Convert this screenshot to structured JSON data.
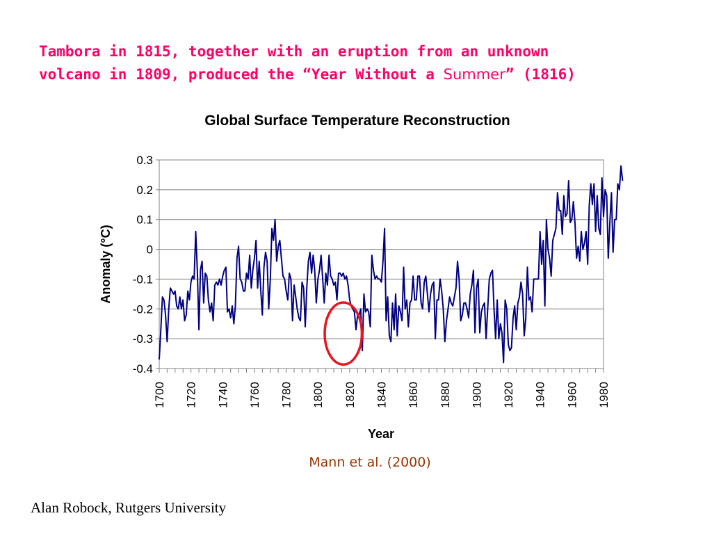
{
  "slide": {
    "heading_line1": "Tambora in 1815, together with an eruption from an unknown",
    "heading_line2_a": "volcano in 1809, produced the “Year Without a",
    "heading_line2_b": "Summer",
    "heading_line2_c": "” (1816)",
    "citation": "Mann et al. (2000)",
    "footer": "Alan Robock, Rutgers University",
    "colors": {
      "heading": "#ff0066",
      "citation": "#993300",
      "highlight": "#e8141e"
    }
  },
  "chart_data": {
    "type": "line",
    "title": "Global Surface Temperature Reconstruction",
    "xlabel": "Year",
    "ylabel": "Anomaly (°C)",
    "xlim": [
      1700,
      1980
    ],
    "ylim": [
      -0.4,
      0.3
    ],
    "x_ticks": [
      "1700",
      "1720",
      "1740",
      "1760",
      "1780",
      "1800",
      "1820",
      "1840",
      "1860",
      "1880",
      "1900",
      "1920",
      "1940",
      "1960",
      "1980"
    ],
    "y_ticks": [
      "0.3",
      "0.2",
      "0.1",
      "0",
      "-0.1",
      "-0.2",
      "-0.3",
      "-0.4"
    ],
    "grid": "horizontal",
    "legend": "none",
    "line_color": "#000080",
    "highlight": {
      "shape": "ellipse",
      "x_range": [
        1810,
        1822
      ],
      "y_range": [
        -0.375,
        -0.19
      ]
    },
    "series": [
      {
        "x_start": 1700,
        "x_step": 1,
        "values": [
          -0.37,
          -0.27,
          -0.16,
          -0.17,
          -0.22,
          -0.31,
          -0.2,
          -0.13,
          -0.14,
          -0.15,
          -0.14,
          -0.19,
          -0.2,
          -0.16,
          -0.2,
          -0.17,
          -0.24,
          -0.22,
          -0.14,
          -0.17,
          -0.11,
          -0.09,
          -0.1,
          0.06,
          -0.07,
          -0.27,
          -0.07,
          -0.04,
          -0.18,
          -0.08,
          -0.09,
          -0.17,
          -0.21,
          -0.18,
          -0.24,
          -0.12,
          -0.11,
          -0.12,
          -0.1,
          -0.12,
          -0.09,
          -0.07,
          -0.06,
          -0.21,
          -0.2,
          -0.23,
          -0.19,
          -0.25,
          -0.19,
          -0.03,
          0.01,
          -0.1,
          -0.11,
          -0.14,
          -0.14,
          -0.08,
          -0.1,
          -0.02,
          -0.13,
          -0.07,
          -0.03,
          0.03,
          -0.13,
          -0.04,
          -0.14,
          -0.22,
          -0.06,
          -0.01,
          -0.04,
          -0.2,
          -0.1,
          0.07,
          0.03,
          0.1,
          -0.04,
          0.01,
          0.03,
          -0.03,
          -0.09,
          -0.1,
          -0.14,
          -0.17,
          -0.08,
          -0.1,
          -0.24,
          -0.12,
          -0.16,
          -0.2,
          -0.23,
          -0.24,
          -0.11,
          -0.13,
          -0.26,
          -0.13,
          -0.04,
          -0.01,
          -0.08,
          -0.02,
          -0.07,
          -0.18,
          -0.1,
          -0.07,
          -0.02,
          -0.1,
          -0.18,
          -0.08,
          -0.12,
          -0.02,
          -0.09,
          -0.1,
          -0.12,
          -0.11,
          -0.17,
          -0.08,
          -0.08,
          -0.09,
          -0.08,
          -0.1,
          -0.09,
          -0.12,
          -0.17,
          -0.19,
          -0.2,
          -0.21,
          -0.27,
          -0.22,
          -0.22,
          -0.2,
          -0.34,
          -0.15,
          -0.21,
          -0.2,
          -0.21,
          -0.26,
          -0.02,
          -0.07,
          -0.1,
          -0.09,
          -0.1,
          -0.1,
          -0.11,
          -0.04,
          0.07,
          -0.24,
          -0.16,
          -0.29,
          -0.31,
          -0.18,
          -0.27,
          -0.15,
          -0.29,
          -0.19,
          -0.21,
          -0.24,
          -0.06,
          -0.2,
          -0.17,
          -0.26,
          -0.18,
          -0.17,
          -0.09,
          -0.17,
          -0.17,
          -0.09,
          -0.09,
          -0.18,
          -0.2,
          -0.11,
          -0.09,
          -0.15,
          -0.21,
          -0.15,
          -0.12,
          -0.11,
          -0.3,
          -0.17,
          -0.17,
          -0.1,
          -0.14,
          -0.2,
          -0.31,
          -0.24,
          -0.2,
          -0.16,
          -0.18,
          -0.19,
          -0.16,
          -0.13,
          -0.04,
          -0.1,
          -0.24,
          -0.22,
          -0.18,
          -0.18,
          -0.2,
          -0.23,
          -0.15,
          -0.12,
          -0.07,
          -0.28,
          -0.13,
          -0.1,
          -0.28,
          -0.21,
          -0.19,
          -0.18,
          -0.3,
          -0.2,
          -0.1,
          -0.08,
          -0.07,
          -0.2,
          -0.3,
          -0.17,
          -0.3,
          -0.25,
          -0.28,
          -0.38,
          -0.17,
          -0.2,
          -0.32,
          -0.34,
          -0.33,
          -0.23,
          -0.19,
          -0.27,
          -0.18,
          -0.16,
          -0.11,
          -0.15,
          -0.29,
          -0.23,
          -0.06,
          -0.17,
          -0.16,
          -0.21,
          -0.1,
          -0.1,
          -0.1,
          -0.1,
          0.06,
          -0.05,
          0.03,
          -0.19,
          0.1,
          0.0,
          -0.03,
          -0.09,
          0.03,
          0.05,
          0.07,
          0.19,
          0.13,
          0.13,
          0.05,
          0.18,
          0.11,
          0.12,
          0.23,
          0.09,
          0.1,
          0.16,
          0.09,
          -0.03,
          0.01,
          -0.04,
          0.06,
          0.0,
          0.02,
          0.06,
          -0.05,
          0.15,
          0.22,
          0.15,
          0.22,
          0.06,
          0.18,
          0.07,
          0.05,
          0.24,
          0.11,
          0.2,
          0.18,
          -0.03,
          0.09,
          0.19,
          -0.01,
          0.1,
          0.1,
          0.22,
          0.2,
          0.28,
          0.23
        ]
      }
    ]
  }
}
